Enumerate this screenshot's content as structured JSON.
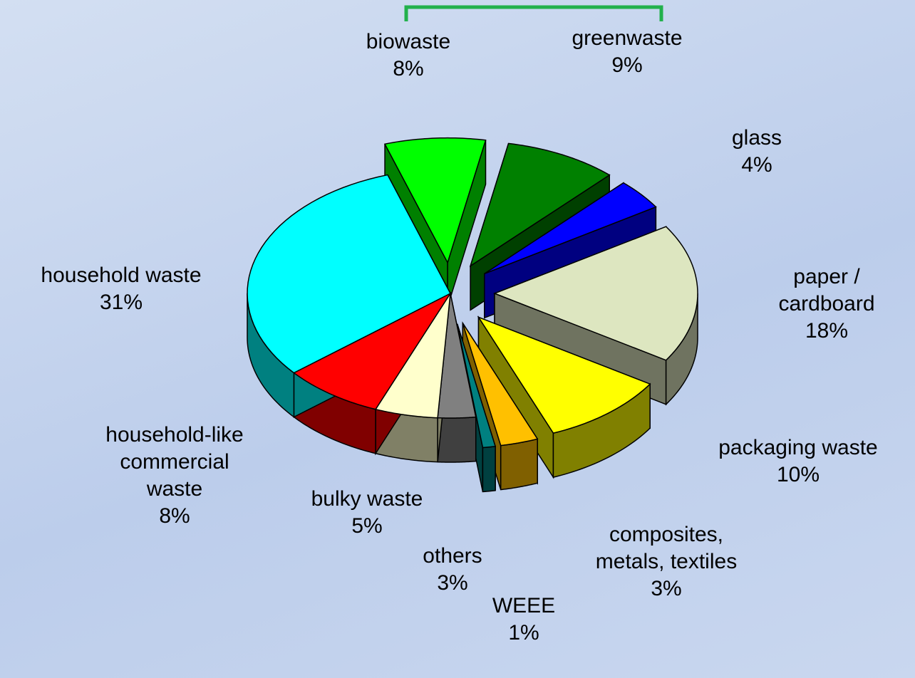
{
  "chart_data": {
    "type": "pie",
    "categories": [
      "biowaste",
      "greenwaste",
      "glass",
      "paper / cardboard",
      "packaging waste",
      "composites, metals, textiles",
      "WEEE",
      "others",
      "bulky waste",
      "household-like commercial waste",
      "household waste"
    ],
    "values": [
      8,
      9,
      4,
      18,
      10,
      3,
      1,
      3,
      5,
      8,
      31
    ],
    "value_labels": [
      "8%",
      "9%",
      "4%",
      "18%",
      "10%",
      "3%",
      "1%",
      "3%",
      "5%",
      "8%",
      "31%"
    ],
    "colors": [
      "#00ff00",
      "#008000",
      "#0000ff",
      "#dde6c0",
      "#ffff00",
      "#ffc000",
      "#008080",
      "#808080",
      "#ffffcc",
      "#ff0000",
      "#00ffff"
    ],
    "exploded": [
      true,
      true,
      true,
      true,
      true,
      true,
      true,
      false,
      false,
      false,
      false
    ],
    "three_d": true
  }
}
